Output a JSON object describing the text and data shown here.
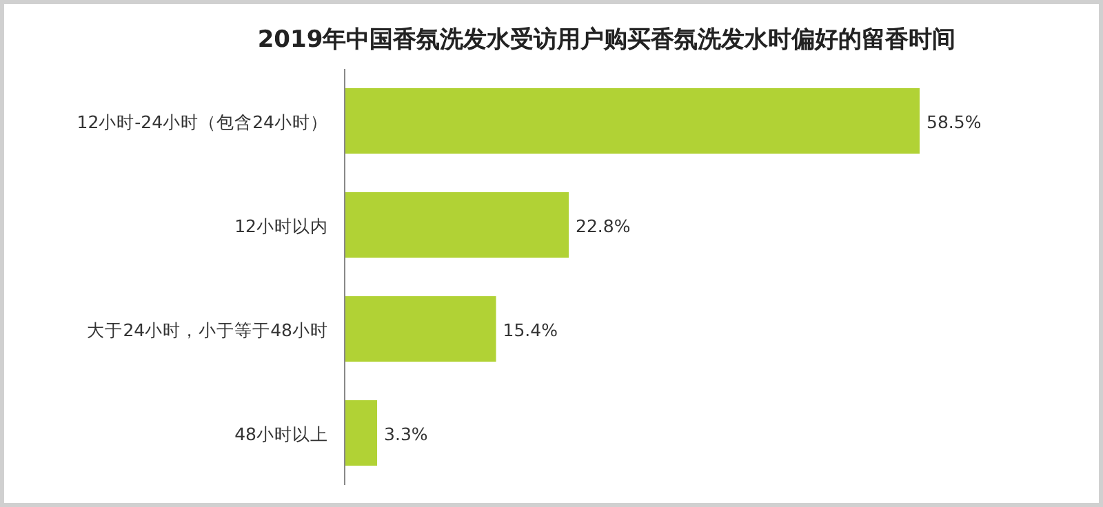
{
  "chart_data": {
    "type": "bar",
    "orientation": "horizontal",
    "title": "2019年中国香氛洗发水受访用户购买香氛洗发水时偏好的留香时间",
    "categories": [
      "12小时-24小时（包含24小时）",
      "12小时以内",
      "大于24小时，小于等于48小时",
      "48小时以上"
    ],
    "values": [
      58.5,
      22.8,
      15.4,
      3.3
    ],
    "value_labels": [
      "58.5%",
      "22.8%",
      "15.4%",
      "3.3%"
    ],
    "color": "#b1d235"
  }
}
